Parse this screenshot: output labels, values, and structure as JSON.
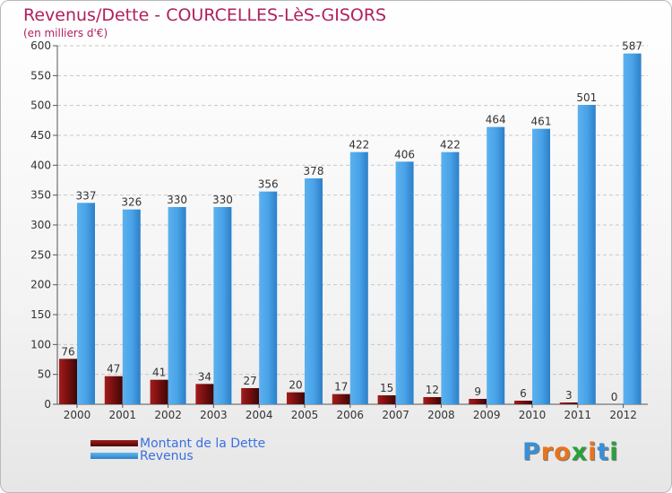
{
  "header": {
    "title": "Revenus/Dette - COURCELLES-LèS-GISORS",
    "subtitle": "(en milliers d'€)"
  },
  "chart_data": {
    "type": "bar",
    "title": "Revenus/Dette - COURCELLES-LèS-GISORS",
    "ylabel": "(en milliers d'€)",
    "xlabel": "",
    "categories": [
      "2000",
      "2001",
      "2002",
      "2003",
      "2004",
      "2005",
      "2006",
      "2007",
      "2008",
      "2009",
      "2010",
      "2011",
      "2012"
    ],
    "series": [
      {
        "name": "Montant de la Dette",
        "color": "#7a1010",
        "values": [
          76,
          47,
          41,
          34,
          27,
          20,
          17,
          15,
          12,
          9,
          6,
          3,
          0
        ]
      },
      {
        "name": "Revenus",
        "color": "#4aa3e8",
        "values": [
          337,
          326,
          330,
          330,
          356,
          378,
          422,
          406,
          422,
          464,
          461,
          501,
          587
        ]
      }
    ],
    "ylim": [
      0,
      600
    ],
    "yticks": [
      0,
      50,
      100,
      150,
      200,
      250,
      300,
      350,
      400,
      450,
      500,
      550,
      600
    ],
    "grid": true,
    "legend_position": "bottom-left"
  },
  "logo": {
    "letters": [
      "P",
      "r",
      "o",
      "x",
      "i",
      "t",
      "i"
    ],
    "colors": [
      "#3a8fd6",
      "#e9731d",
      "#e9731d",
      "#2aa03a",
      "#e9731d",
      "#3a8fd6",
      "#2aa03a"
    ]
  }
}
